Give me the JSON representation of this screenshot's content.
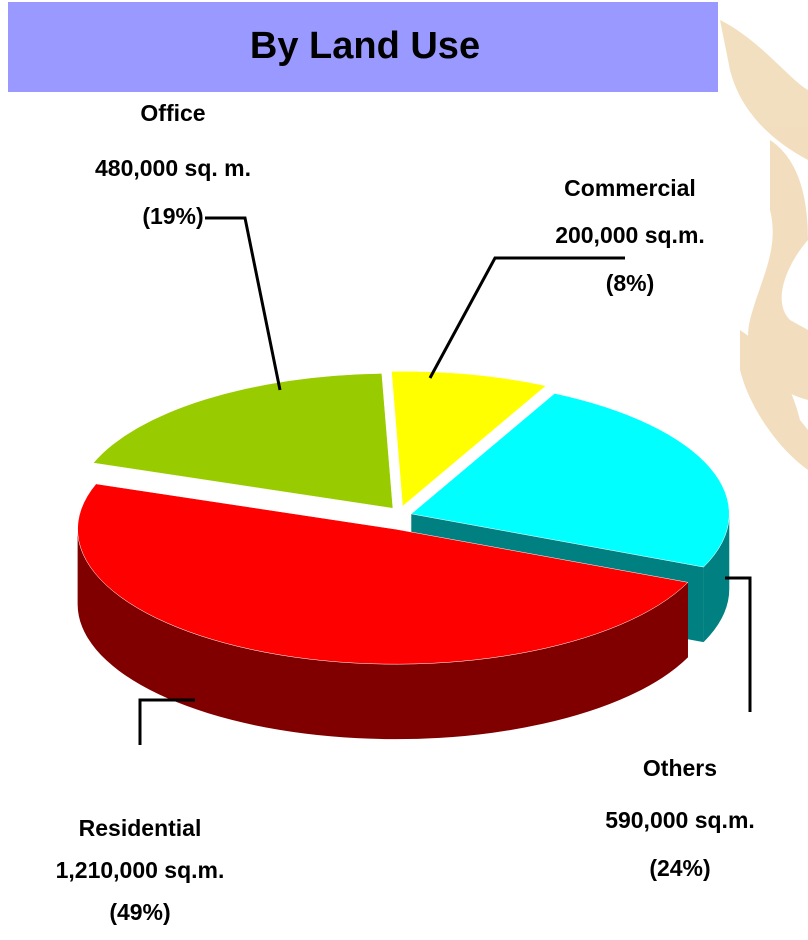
{
  "chart_data": {
    "type": "pie",
    "title": "By Land Use",
    "categories": [
      "Residential",
      "Office",
      "Commercial",
      "Others"
    ],
    "values": [
      49,
      19,
      8,
      24
    ],
    "value_labels": [
      "(49%)",
      "(19%)",
      "(8%)",
      "(24%)"
    ],
    "areas": [
      {
        "value": 1210000,
        "label": "1,210,000 sq.m."
      },
      {
        "value": 480000,
        "label": "480,000  sq. m."
      },
      {
        "value": 200000,
        "label": "200,000 sq.m."
      },
      {
        "value": 590000,
        "label": "590,000 sq.m."
      }
    ],
    "colors": [
      "#ff0000",
      "#99cc00",
      "#ffff00",
      "#00ffff"
    ],
    "side_colors": [
      "#800000",
      "#5f6b00",
      "#808000",
      "#008080"
    ]
  }
}
